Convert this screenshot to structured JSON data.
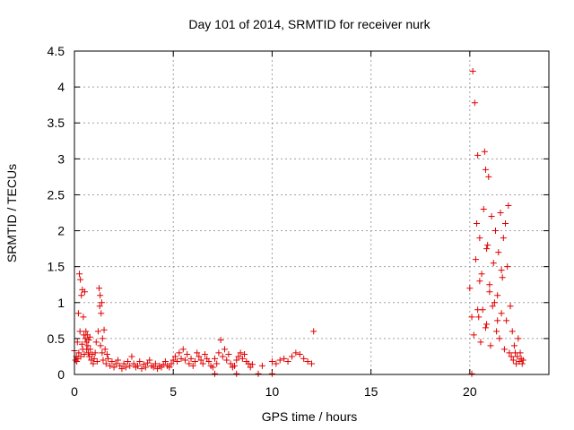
{
  "chart_data": {
    "type": "scatter",
    "title": "Day 101 of 2014, SRMTID for receiver nurk",
    "xlabel": "GPS time / hours",
    "ylabel": "SRMTID / TECUs",
    "xlim": [
      0,
      24
    ],
    "ylim": [
      0,
      4.5
    ],
    "xticks": [
      0,
      5,
      10,
      15,
      20
    ],
    "xtick_labels": [
      "0",
      "5",
      "10",
      "15",
      "20"
    ],
    "yticks": [
      0,
      0.5,
      1,
      1.5,
      2,
      2.5,
      3,
      3.5,
      4,
      4.5
    ],
    "ytick_labels": [
      "0",
      "0.5",
      "1",
      "1.5",
      "2",
      "2.5",
      "3",
      "3.5",
      "4",
      "4.5"
    ],
    "grid": true,
    "marker": "+",
    "color": "#e00000",
    "series": [
      {
        "name": "SRMTID",
        "x": [
          0.0,
          0.05,
          0.1,
          0.12,
          0.15,
          0.18,
          0.2,
          0.22,
          0.25,
          0.28,
          0.3,
          0.32,
          0.35,
          0.38,
          0.4,
          0.42,
          0.45,
          0.48,
          0.5,
          0.52,
          0.55,
          0.58,
          0.6,
          0.62,
          0.65,
          0.68,
          0.7,
          0.72,
          0.75,
          0.78,
          0.8,
          0.85,
          0.9,
          0.95,
          1.0,
          1.05,
          1.1,
          1.15,
          1.2,
          1.25,
          1.28,
          1.3,
          1.32,
          1.35,
          1.38,
          1.4,
          1.42,
          1.45,
          1.5,
          1.55,
          1.6,
          1.65,
          1.7,
          1.8,
          1.9,
          2.0,
          2.1,
          2.2,
          2.3,
          2.4,
          2.5,
          2.6,
          2.7,
          2.8,
          2.9,
          3.0,
          3.1,
          3.2,
          3.3,
          3.4,
          3.5,
          3.6,
          3.7,
          3.8,
          3.9,
          4.0,
          4.1,
          4.2,
          4.3,
          4.4,
          4.5,
          4.6,
          4.7,
          4.8,
          4.9,
          5.0,
          5.1,
          5.2,
          5.3,
          5.4,
          5.5,
          5.6,
          5.7,
          5.8,
          5.9,
          6.0,
          6.1,
          6.2,
          6.3,
          6.4,
          6.5,
          6.6,
          6.7,
          6.8,
          6.9,
          7.0,
          7.1,
          7.2,
          7.3,
          7.4,
          7.5,
          7.6,
          7.7,
          7.8,
          7.9,
          8.0,
          8.1,
          8.2,
          8.3,
          8.4,
          8.5,
          8.6,
          8.7,
          8.8,
          8.9,
          9.0,
          9.5,
          10.0,
          10.2,
          10.4,
          10.6,
          10.8,
          11.0,
          11.2,
          11.4,
          11.6,
          11.8,
          12.0,
          12.1,
          20.0,
          20.1,
          20.15,
          20.2,
          20.25,
          20.3,
          20.35,
          20.4,
          20.45,
          20.5,
          20.55,
          20.6,
          20.65,
          20.7,
          20.75,
          20.8,
          20.85,
          20.9,
          20.95,
          21.0,
          21.05,
          21.1,
          21.15,
          21.2,
          21.25,
          21.3,
          21.35,
          21.4,
          21.45,
          21.5,
          21.55,
          21.6,
          21.65,
          21.7,
          21.75,
          21.8,
          21.85,
          21.9,
          21.95,
          22.0,
          22.05,
          22.1,
          22.15,
          22.2,
          22.25,
          22.3,
          22.35,
          22.4,
          22.45,
          22.5,
          22.55,
          22.6,
          22.65,
          22.7,
          7.1,
          8.2,
          9.3,
          10.0,
          20.1,
          20.4,
          20.5,
          20.8,
          20.85,
          21.0,
          21.4,
          21.6
        ],
        "y": [
          0.33,
          0.2,
          0.25,
          0.18,
          0.45,
          0.22,
          0.85,
          0.3,
          1.4,
          0.6,
          1.32,
          0.25,
          1.1,
          0.42,
          1.18,
          0.35,
          0.8,
          0.55,
          0.28,
          1.15,
          0.5,
          0.6,
          0.45,
          0.35,
          0.55,
          0.4,
          0.3,
          0.48,
          0.25,
          0.52,
          0.35,
          0.2,
          0.28,
          0.15,
          0.22,
          0.3,
          0.45,
          0.18,
          0.6,
          1.2,
          0.95,
          1.1,
          0.4,
          0.85,
          1.0,
          0.3,
          0.5,
          0.2,
          0.62,
          0.35,
          0.15,
          0.28,
          0.22,
          0.12,
          0.18,
          0.1,
          0.15,
          0.2,
          0.12,
          0.08,
          0.15,
          0.1,
          0.18,
          0.12,
          0.25,
          0.15,
          0.1,
          0.12,
          0.18,
          0.08,
          0.14,
          0.1,
          0.16,
          0.2,
          0.12,
          0.1,
          0.15,
          0.08,
          0.12,
          0.1,
          0.14,
          0.18,
          0.12,
          0.1,
          0.15,
          0.2,
          0.25,
          0.18,
          0.3,
          0.22,
          0.35,
          0.2,
          0.28,
          0.15,
          0.22,
          0.12,
          0.18,
          0.3,
          0.25,
          0.2,
          0.15,
          0.28,
          0.22,
          0.18,
          0.12,
          0.1,
          0.22,
          0.15,
          0.3,
          0.48,
          0.25,
          0.35,
          0.2,
          0.28,
          0.15,
          0.1,
          0.12,
          0.2,
          0.25,
          0.3,
          0.22,
          0.28,
          0.18,
          0.15,
          0.1,
          0.14,
          0.12,
          0.18,
          0.15,
          0.2,
          0.22,
          0.18,
          0.25,
          0.3,
          0.28,
          0.22,
          0.18,
          0.15,
          0.6,
          1.2,
          0.8,
          4.22,
          0.55,
          3.78,
          1.6,
          2.1,
          3.05,
          0.8,
          1.9,
          0.45,
          1.4,
          0.9,
          2.3,
          3.1,
          2.85,
          0.7,
          1.8,
          2.75,
          1.25,
          0.4,
          2.2,
          0.95,
          1.55,
          1.0,
          2.0,
          0.6,
          1.1,
          1.7,
          0.5,
          2.25,
          0.85,
          1.35,
          1.9,
          0.35,
          2.1,
          0.75,
          1.5,
          2.35,
          0.3,
          0.95,
          0.25,
          0.6,
          0.2,
          0.4,
          0.3,
          0.15,
          0.25,
          0.5,
          0.18,
          0.3,
          0.22,
          0.15,
          0.2,
          0.01,
          0.01,
          0.01,
          0.01,
          0.01,
          0.9,
          1.3,
          0.65,
          1.75,
          1.15,
          0.75,
          1.45
        ]
      }
    ]
  }
}
